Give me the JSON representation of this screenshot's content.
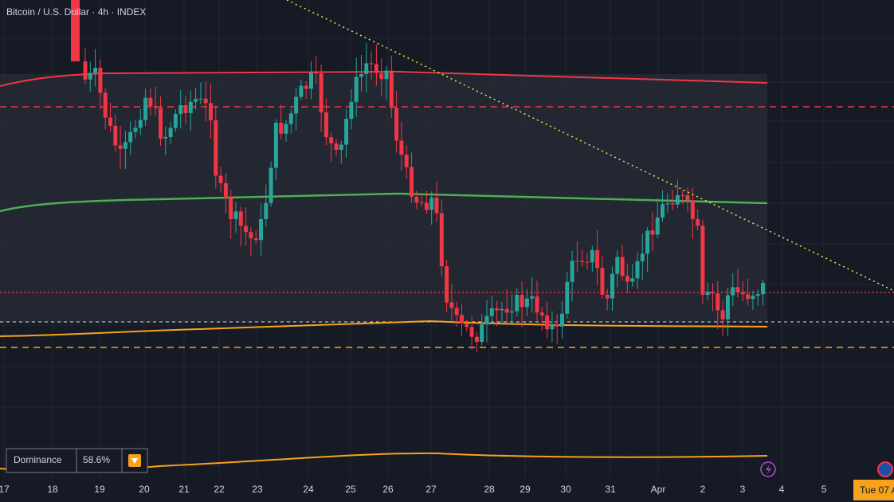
{
  "header": {
    "title": "Bitcoin / U.S. Dollar · 4h · INDEX"
  },
  "x_axis": {
    "labels": [
      "17",
      "18",
      "19",
      "20",
      "21",
      "22",
      "23",
      "24",
      "25",
      "26",
      "27",
      "28",
      "29",
      "30",
      "31",
      "Apr",
      "2",
      "3",
      "4",
      "5"
    ]
  },
  "dominance": {
    "label": "Dominance",
    "value": "58.6%"
  },
  "date_badge": "Tue 07 A"
}
